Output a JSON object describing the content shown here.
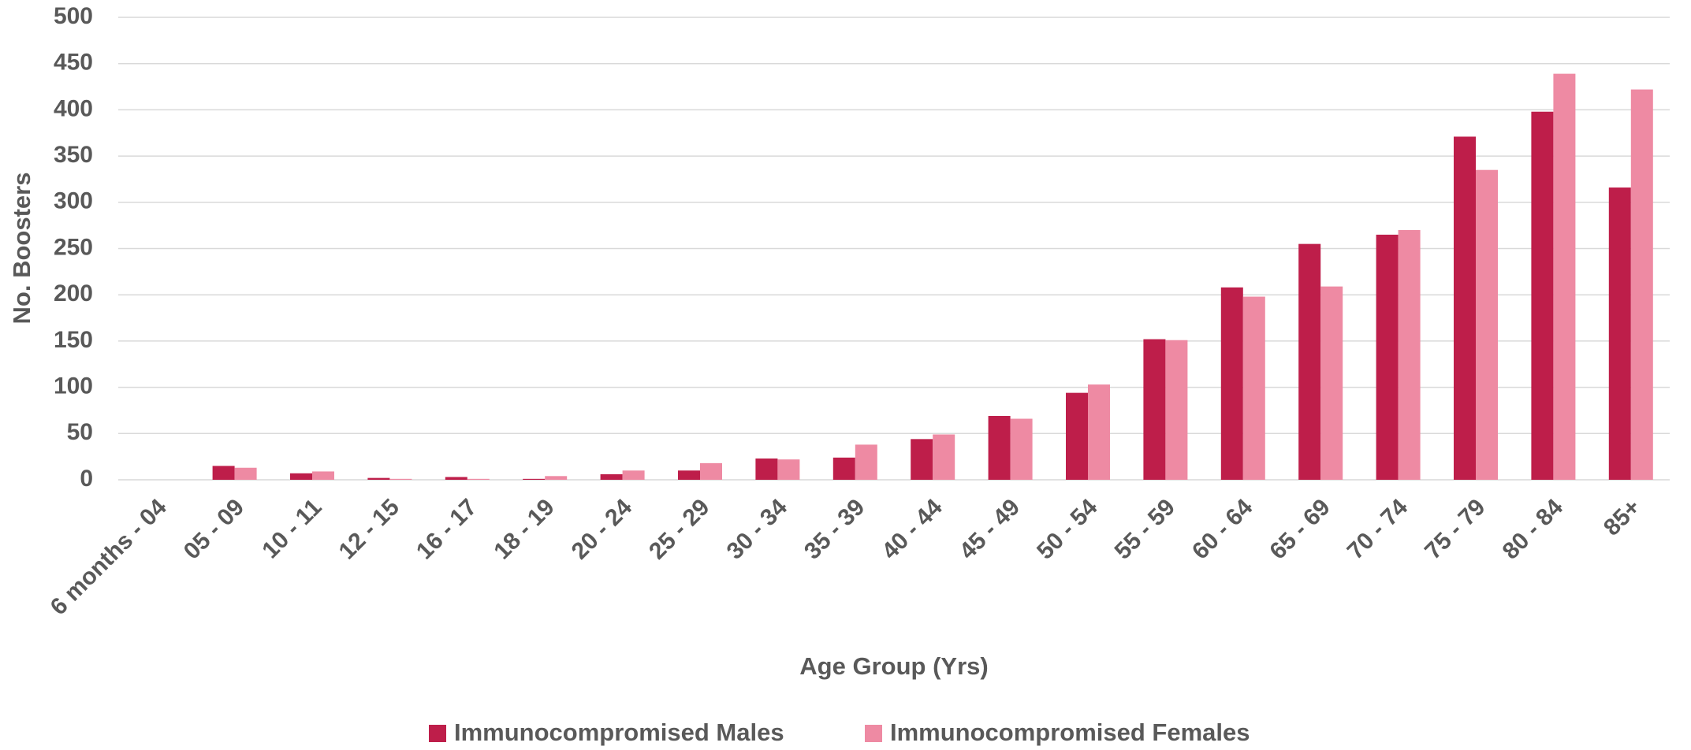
{
  "chart_data": {
    "type": "bar",
    "x_label": "Age Group (Yrs)",
    "y_label": "No. Boosters",
    "categories": [
      "6 months - 04",
      "05 - 09",
      "10 - 11",
      "12 - 15",
      "16 - 17",
      "18 - 19",
      "20 - 24",
      "25 - 29",
      "30 - 34",
      "35 - 39",
      "40 - 44",
      "45 - 49",
      "50 - 54",
      "55 - 59",
      "60 - 64",
      "65 - 69",
      "70 - 74",
      "75 - 79",
      "80 - 84",
      "85+"
    ],
    "series": [
      {
        "name": "Immunocompromised Males",
        "color": "#be1e4a",
        "values": [
          0,
          15,
          7,
          2,
          3,
          1,
          6,
          10,
          23,
          24,
          44,
          69,
          94,
          152,
          208,
          255,
          265,
          371,
          398,
          316
        ]
      },
      {
        "name": "Immunocompromised Females",
        "color": "#ee8aa3",
        "values": [
          0,
          13,
          9,
          1,
          1,
          4,
          10,
          18,
          22,
          38,
          49,
          66,
          103,
          151,
          198,
          209,
          270,
          335,
          439,
          422
        ]
      }
    ],
    "ylim": [
      0,
      500
    ],
    "yticks": [
      0,
      50,
      100,
      150,
      200,
      250,
      300,
      350,
      400,
      450,
      500
    ],
    "grid": true,
    "legend": "bottom"
  }
}
